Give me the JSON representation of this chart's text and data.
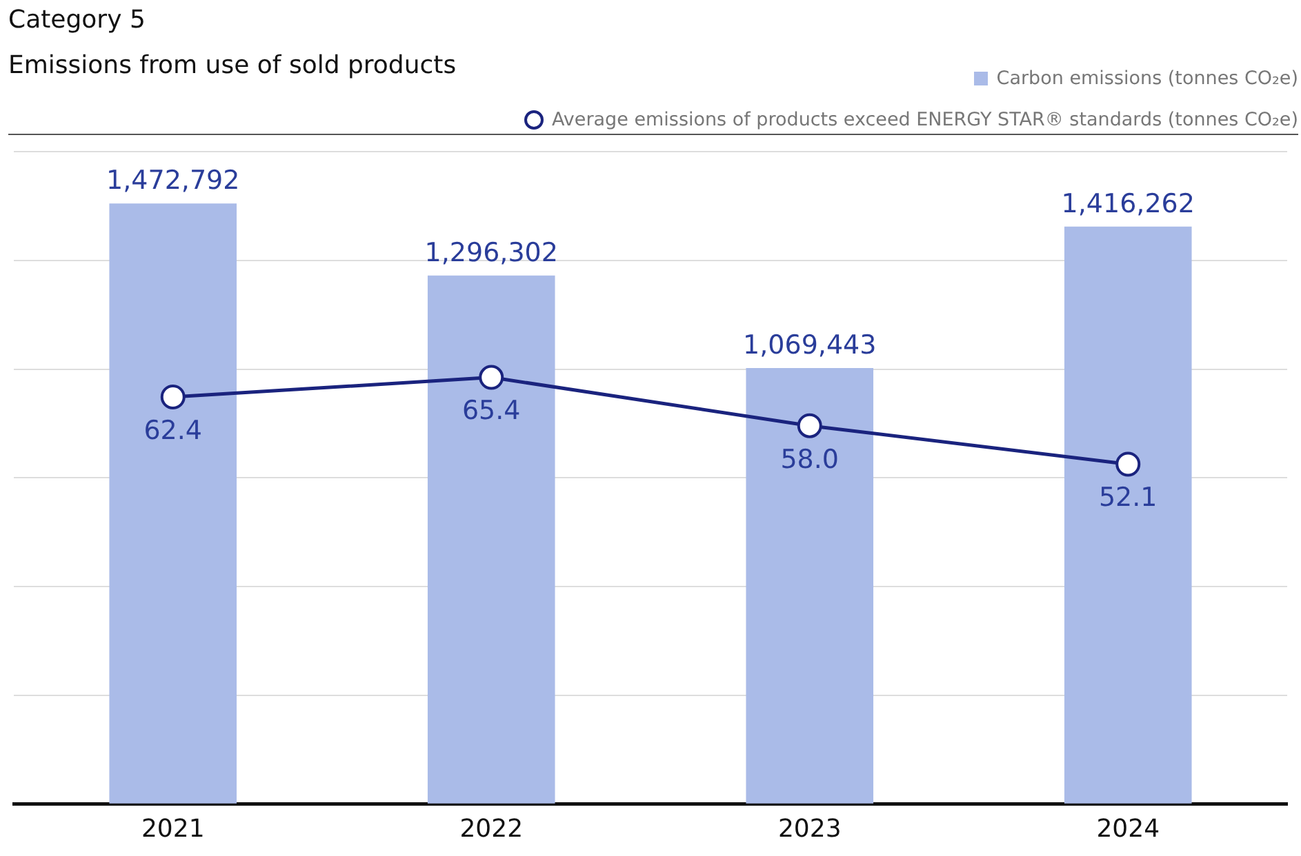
{
  "chart_data": {
    "type": "bar",
    "title": "Category 5",
    "subtitle": "Emissions from use of sold products",
    "categories": [
      "2021",
      "2022",
      "2023",
      "2024"
    ],
    "series": [
      {
        "name": "Carbon emissions (tonnes CO₂e)",
        "color": "#aabbe8",
        "values": [
          1472792,
          1296302,
          1069443,
          1416262
        ],
        "value_labels": [
          "1,472,792",
          "1,296,302",
          "1,069,443",
          "1,416,262"
        ]
      },
      {
        "name": "Average emissions of products exceed ENERGY STAR® standards (tonnes CO₂e)",
        "type": "line",
        "axis": "y2",
        "color": "#1a237e",
        "values": [
          62.4,
          65.4,
          58.0,
          52.1
        ],
        "value_labels": [
          "62.4",
          "65.4",
          "58.0",
          "52.1"
        ]
      }
    ],
    "grid": "y",
    "legend": "top right",
    "tick_labels": "x",
    "marker": "circle",
    "line_style": "solid"
  }
}
